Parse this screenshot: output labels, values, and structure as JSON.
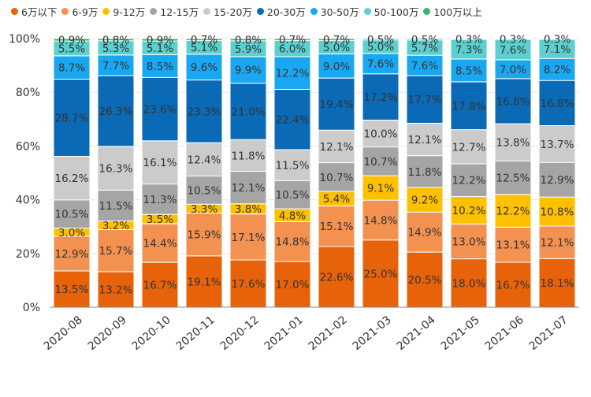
{
  "chart_data": {
    "type": "bar",
    "stacked": true,
    "normalized": true,
    "title": "",
    "xlabel": "",
    "ylabel": "",
    "ylim": [
      0,
      100
    ],
    "y_ticks": [
      "0%",
      "20%",
      "40%",
      "60%",
      "80%",
      "100%"
    ],
    "grid": true,
    "legend_position": "top",
    "categories": [
      "2020-08",
      "2020-09",
      "2020-10",
      "2020-11",
      "2020-12",
      "2021-01",
      "2021-02",
      "2021-03",
      "2021-04",
      "2021-05",
      "2021-06",
      "2021-07"
    ],
    "series": [
      {
        "name": "6万以下",
        "color": "#e8620a",
        "values": [
          13.5,
          13.2,
          16.7,
          19.1,
          17.6,
          17.0,
          22.6,
          25.0,
          20.5,
          18.0,
          16.7,
          18.1
        ]
      },
      {
        "name": "6-9万",
        "color": "#f39150",
        "values": [
          12.9,
          15.7,
          14.4,
          15.9,
          17.1,
          14.8,
          15.1,
          14.8,
          14.9,
          13.0,
          13.1,
          12.1
        ]
      },
      {
        "name": "9-12万",
        "color": "#ffc000",
        "values": [
          3.0,
          3.2,
          3.5,
          3.3,
          3.8,
          4.8,
          5.4,
          9.1,
          9.2,
          10.2,
          12.2,
          10.8
        ]
      },
      {
        "name": "12-15万",
        "color": "#a5a5a5",
        "values": [
          10.5,
          11.5,
          11.3,
          10.5,
          12.1,
          10.5,
          10.7,
          10.7,
          11.8,
          12.2,
          12.5,
          12.9
        ]
      },
      {
        "name": "15-20万",
        "color": "#cbcbcb",
        "values": [
          16.2,
          16.3,
          16.1,
          12.4,
          11.8,
          11.5,
          12.1,
          10.0,
          12.1,
          12.7,
          13.8,
          13.7
        ]
      },
      {
        "name": "20-30万",
        "color": "#0a6ab5",
        "values": [
          28.7,
          26.3,
          23.6,
          23.3,
          21.0,
          22.4,
          19.4,
          17.2,
          17.7,
          17.8,
          16.8,
          16.8
        ]
      },
      {
        "name": "30-50万",
        "color": "#1aa7f2",
        "values": [
          8.7,
          7.7,
          8.5,
          9.6,
          9.9,
          12.2,
          9.0,
          7.6,
          7.6,
          8.5,
          7.0,
          8.2
        ]
      },
      {
        "name": "50-100万",
        "color": "#5ccfcf",
        "values": [
          5.5,
          5.3,
          5.1,
          5.1,
          5.9,
          6.0,
          5.0,
          5.0,
          5.7,
          7.3,
          7.6,
          7.1
        ]
      },
      {
        "name": "100万以上",
        "color": "#3cb371",
        "values": [
          0.9,
          0.8,
          0.9,
          0.7,
          0.8,
          0.7,
          0.7,
          0.5,
          0.5,
          0.3,
          0.3,
          0.3
        ]
      }
    ]
  }
}
